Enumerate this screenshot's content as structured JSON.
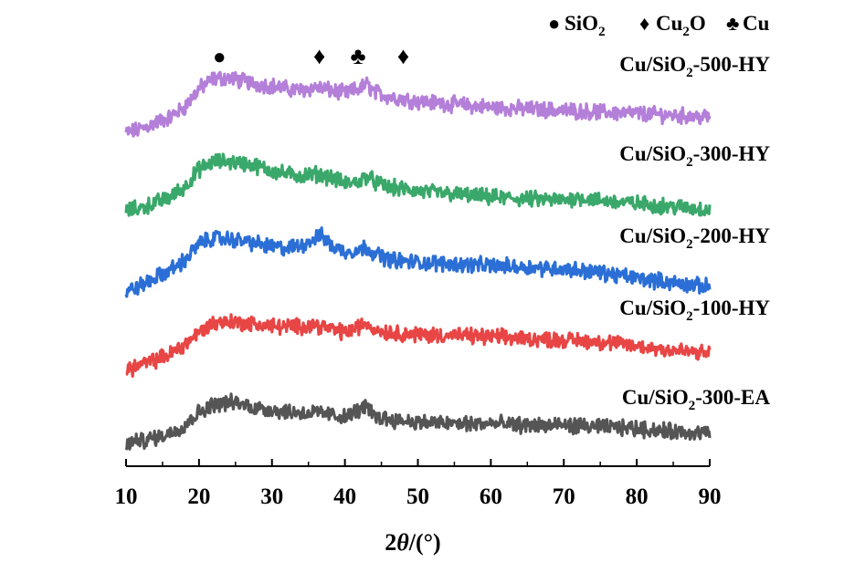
{
  "chart_data": {
    "type": "line",
    "title": "",
    "xlabel_prefix": "2",
    "xlabel_theta": "θ",
    "xlabel_suffix": "/(°)",
    "ylabel": "",
    "xlim": [
      10,
      90
    ],
    "xticks": [
      10,
      20,
      30,
      40,
      50,
      60,
      70,
      80,
      90
    ],
    "y_axis_visible": false,
    "legend": {
      "placement": "top-right",
      "items": [
        {
          "symbol": "●",
          "label": "SiO",
          "sub": "2"
        },
        {
          "symbol": "♦",
          "label": "Cu",
          "sub": "2",
          "label_after": "O"
        },
        {
          "symbol": "♣",
          "label": "Cu",
          "sub": "",
          "label_after": ""
        }
      ]
    },
    "peak_markers": [
      {
        "symbol": "●",
        "phase": "SiO2",
        "x": 22.8
      },
      {
        "symbol": "♦",
        "phase": "Cu2O",
        "x": 36.5
      },
      {
        "symbol": "♣",
        "phase": "Cu",
        "x": 41.8
      },
      {
        "symbol": "♦",
        "phase": "Cu2O",
        "x": 48.0
      }
    ],
    "series": [
      {
        "name": "Cu/SiO2-500-HY",
        "label_main": "Cu/SiO",
        "label_sub": "2",
        "label_tail": "-500-HY",
        "color": "#b47fd9",
        "offset": 400,
        "x": [
          10,
          12,
          14,
          16,
          18,
          20,
          22,
          24,
          26,
          28,
          30,
          32,
          34,
          36,
          38,
          40,
          42,
          43,
          44,
          46,
          50,
          55,
          60,
          65,
          70,
          75,
          80,
          85,
          90
        ],
        "y": [
          5,
          10,
          18,
          25,
          38,
          62,
          75,
          76,
          72,
          68,
          66,
          62,
          60,
          64,
          60,
          56,
          62,
          68,
          58,
          52,
          46,
          42,
          38,
          36,
          34,
          32,
          30,
          28,
          25
        ]
      },
      {
        "name": "Cu/SiO2-300-HY",
        "label_main": "Cu/SiO",
        "label_sub": "2",
        "label_tail": "-300-HY",
        "color": "#3aa86a",
        "offset": 300,
        "x": [
          10,
          12,
          14,
          16,
          18,
          20,
          22,
          24,
          26,
          28,
          30,
          32,
          34,
          36,
          38,
          40,
          42,
          43,
          44,
          46,
          50,
          55,
          60,
          65,
          70,
          72,
          75,
          80,
          85,
          90
        ],
        "y": [
          5,
          8,
          15,
          22,
          35,
          58,
          68,
          68,
          66,
          62,
          56,
          52,
          50,
          52,
          48,
          40,
          42,
          50,
          42,
          35,
          30,
          26,
          22,
          20,
          18,
          22,
          18,
          14,
          10,
          6
        ]
      },
      {
        "name": "Cu/SiO2-200-HY",
        "label_main": "Cu/SiO",
        "label_sub": "2",
        "label_tail": "-200-HY",
        "color": "#2b6fd6",
        "offset": 200,
        "x": [
          10,
          12,
          14,
          16,
          18,
          20,
          22,
          24,
          26,
          28,
          30,
          32,
          34,
          36,
          37,
          38,
          40,
          42,
          43,
          44,
          46,
          50,
          55,
          60,
          65,
          70,
          75,
          80,
          85,
          90
        ],
        "y": [
          0,
          8,
          18,
          28,
          40,
          62,
          70,
          68,
          66,
          62,
          58,
          56,
          60,
          70,
          72,
          60,
          52,
          54,
          58,
          50,
          42,
          38,
          36,
          34,
          32,
          30,
          25,
          18,
          12,
          6
        ]
      },
      {
        "name": "Cu/SiO2-100-HY",
        "label_main": "Cu/SiO",
        "label_sub": "2",
        "label_tail": "-100-HY",
        "color": "#e84545",
        "offset": 100,
        "x": [
          10,
          12,
          14,
          16,
          18,
          20,
          22,
          24,
          26,
          28,
          30,
          32,
          34,
          36,
          38,
          40,
          42,
          43,
          44,
          46,
          50,
          55,
          60,
          65,
          70,
          75,
          80,
          85,
          90
        ],
        "y": [
          0,
          6,
          12,
          20,
          32,
          48,
          60,
          62,
          60,
          58,
          56,
          55,
          56,
          58,
          52,
          48,
          55,
          60,
          52,
          48,
          45,
          44,
          42,
          40,
          38,
          36,
          30,
          25,
          20
        ]
      },
      {
        "name": "Cu/SiO2-300-EA",
        "label_main": "Cu/SiO",
        "label_sub": "2",
        "label_tail": "-300-EA",
        "color": "#555555",
        "offset": 0,
        "x": [
          10,
          12,
          14,
          16,
          18,
          20,
          22,
          24,
          26,
          28,
          30,
          32,
          34,
          36,
          38,
          40,
          42,
          43,
          44,
          46,
          50,
          55,
          60,
          65,
          70,
          75,
          80,
          85,
          90
        ],
        "y": [
          5,
          8,
          12,
          18,
          28,
          45,
          55,
          58,
          55,
          50,
          48,
          46,
          44,
          44,
          42,
          38,
          48,
          52,
          40,
          36,
          32,
          30,
          30,
          28,
          28,
          26,
          24,
          20,
          18
        ]
      }
    ]
  }
}
